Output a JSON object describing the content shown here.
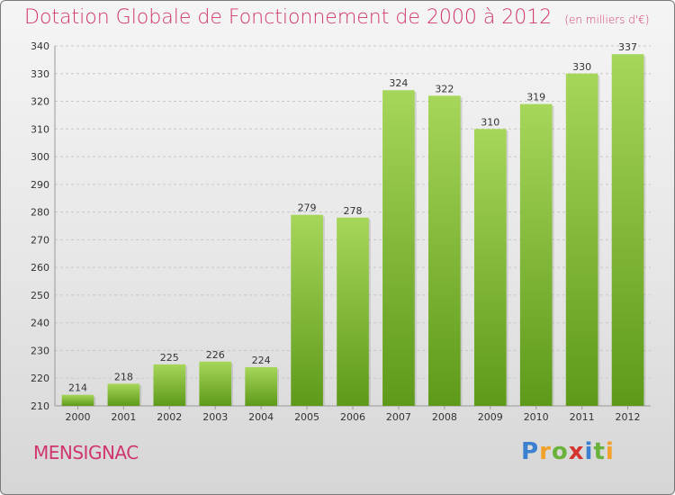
{
  "title": "Dotation Globale de Fonctionnement de 2000 à 2012",
  "unit_note": "(en milliers d'€)",
  "commune": "MENSIGNAC",
  "brand": {
    "text": "Proxiti",
    "letters": [
      {
        "char": "P",
        "color": "#3b7fd0"
      },
      {
        "char": "r",
        "color": "#f2a12a"
      },
      {
        "char": "o",
        "color": "#69b23b"
      },
      {
        "char": "x",
        "color": "#d5352f"
      },
      {
        "char": "i",
        "color": "#3b7fd0"
      },
      {
        "char": "t",
        "color": "#69b23b"
      },
      {
        "char": "i",
        "color": "#f2a12a"
      }
    ]
  },
  "colors": {
    "title": "#d0356f",
    "bar_top": "#a6d65a",
    "bar_bottom": "#5e9a1a",
    "grid": "#c8c8c8"
  },
  "chart_data": {
    "type": "bar",
    "title": "Dotation Globale de Fonctionnement de 2000 à 2012",
    "subtitle": "(en milliers d'€)",
    "categories": [
      "2000",
      "2001",
      "2002",
      "2003",
      "2004",
      "2005",
      "2006",
      "2007",
      "2008",
      "2009",
      "2010",
      "2011",
      "2012"
    ],
    "values": [
      214,
      218,
      225,
      226,
      224,
      279,
      278,
      324,
      322,
      310,
      319,
      330,
      337
    ],
    "ylim": [
      210,
      340
    ],
    "yticks": [
      210,
      220,
      230,
      240,
      250,
      260,
      270,
      280,
      290,
      300,
      310,
      320,
      330,
      340
    ],
    "xlabel": "",
    "ylabel": "",
    "grid": true,
    "legend": "none"
  }
}
